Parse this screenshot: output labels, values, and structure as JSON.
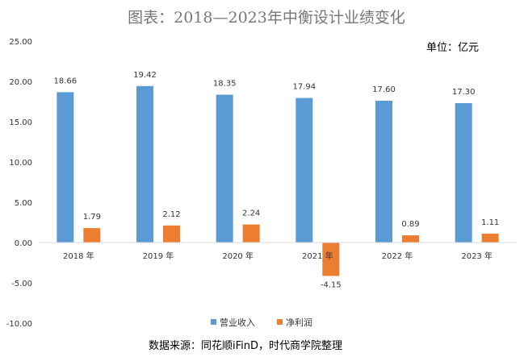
{
  "chart_data": {
    "type": "bar",
    "title": "图表：2018—2023年中衡设计业绩变化",
    "unit_label": "单位：亿元",
    "categories": [
      "2018 年",
      "2019 年",
      "2020 年",
      "2021 年",
      "2022 年",
      "2023 年"
    ],
    "series": [
      {
        "name": "营业收入",
        "values": [
          18.66,
          19.42,
          18.35,
          17.94,
          17.6,
          17.3
        ],
        "labels": [
          "18.66",
          "19.42",
          "18.35",
          "17.94",
          "17.60",
          "17.30"
        ],
        "color": "#5B9BD5"
      },
      {
        "name": "净利润",
        "values": [
          1.79,
          2.12,
          2.24,
          -4.15,
          0.89,
          1.11
        ],
        "labels": [
          "1.79",
          "2.12",
          "2.24",
          "-4.15",
          "0.89",
          "1.11"
        ],
        "color": "#ED7D31"
      }
    ],
    "ylim": [
      -10,
      25
    ],
    "yticks": [
      "-10.00",
      "-5.00",
      "0.00",
      "5.00",
      "10.00",
      "15.00",
      "20.00",
      "25.00"
    ],
    "grid": false,
    "legend_position": "bottom"
  },
  "source_text": "数据来源：同花顺iFinD，时代商学院整理"
}
